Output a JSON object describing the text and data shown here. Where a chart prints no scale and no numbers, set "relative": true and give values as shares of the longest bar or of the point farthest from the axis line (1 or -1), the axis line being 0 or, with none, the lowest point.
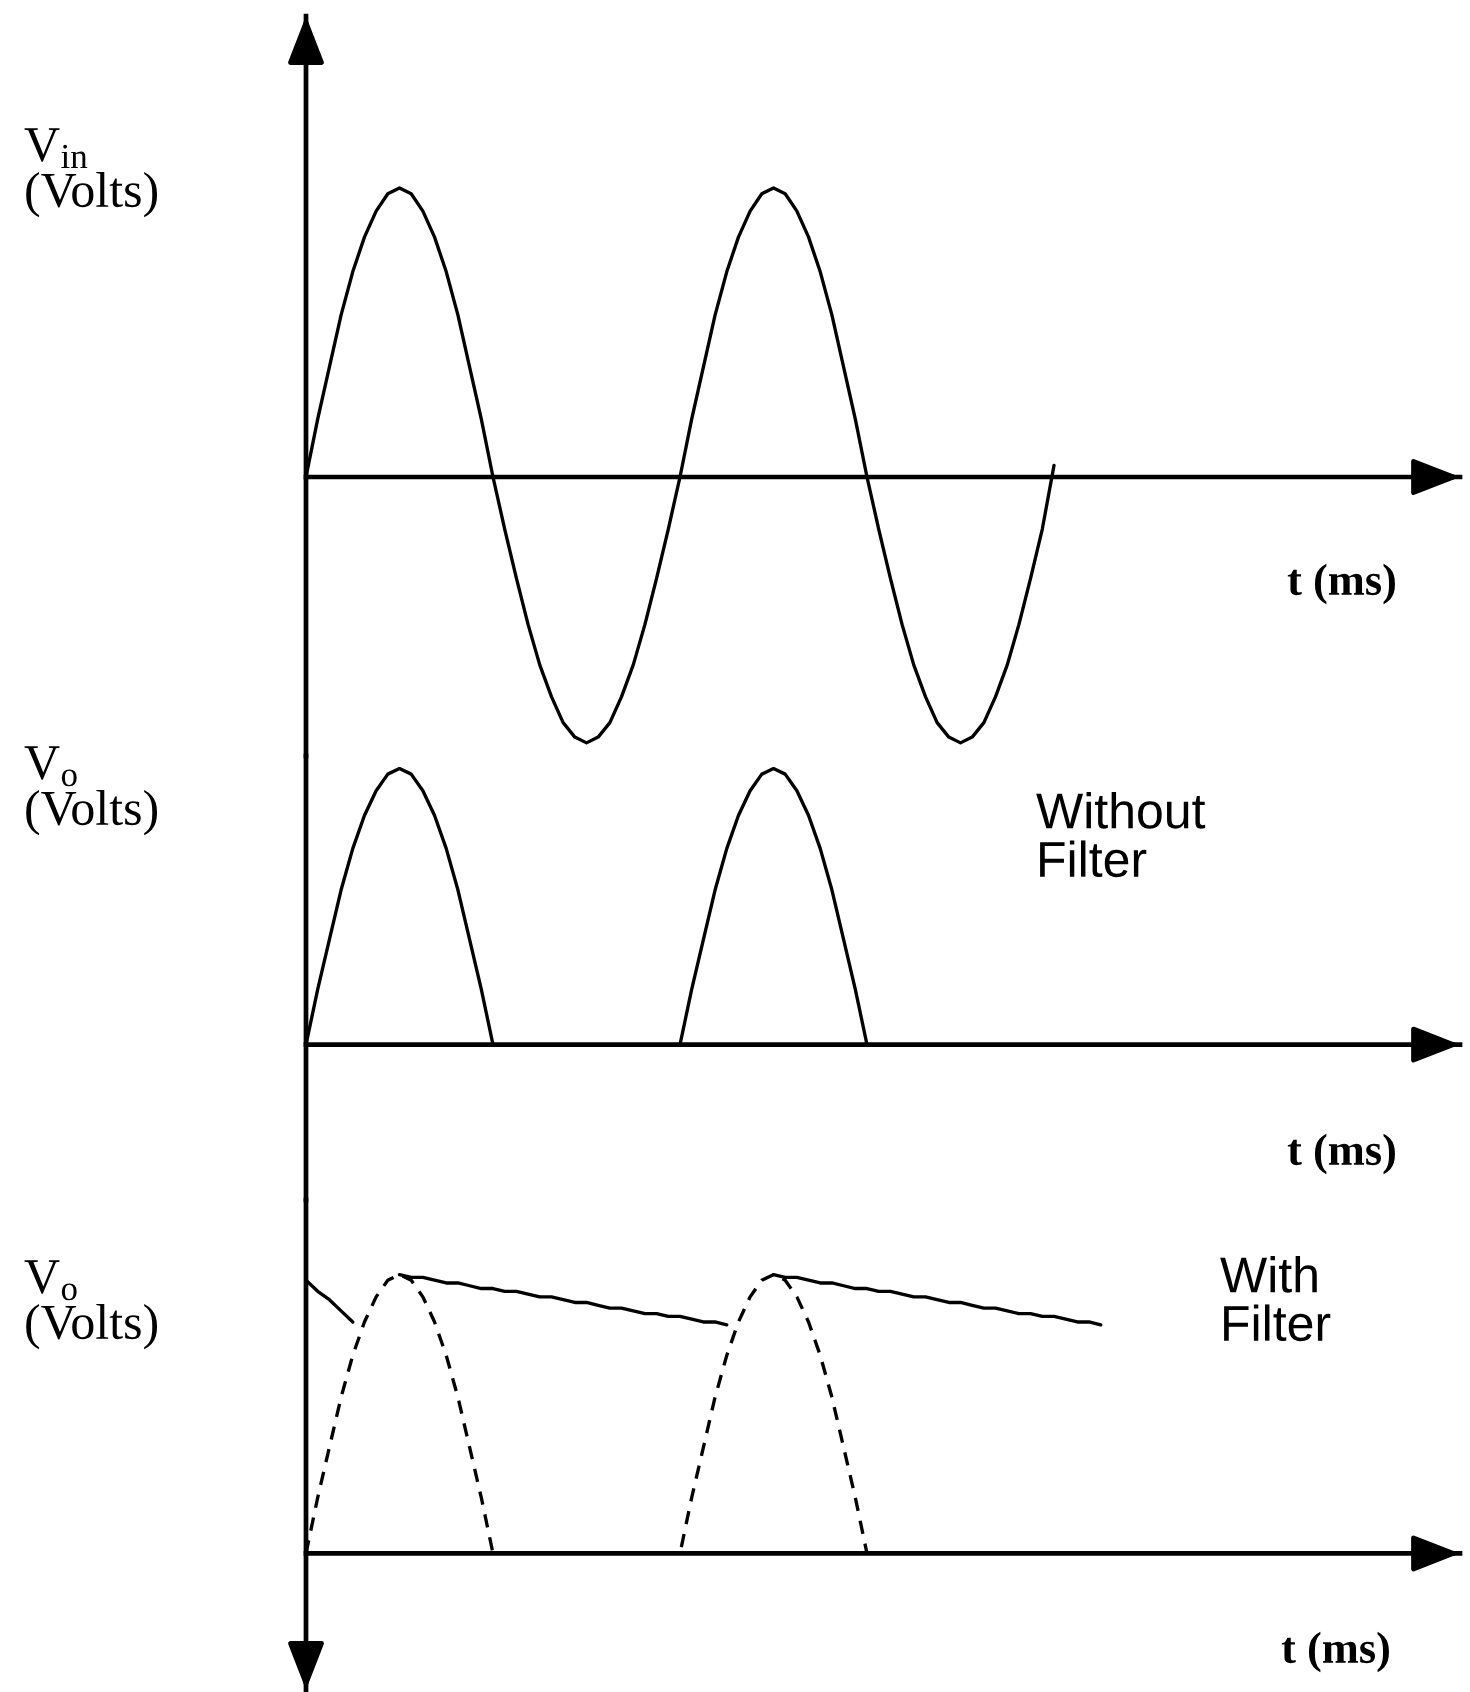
{
  "chart_data": [
    {
      "type": "line",
      "relative": true,
      "ylabel": "V$_{in}$\n(Volts)",
      "xlabel": "t (ms)",
      "categories": [
        null,
        null,
        null,
        null,
        null,
        null,
        null,
        null,
        null,
        null,
        null,
        null,
        null,
        null,
        null,
        null,
        null,
        null,
        null,
        null,
        null,
        null,
        null,
        null,
        null,
        null,
        null,
        null,
        null,
        null,
        null,
        null,
        null,
        null,
        null,
        null,
        null,
        null,
        null,
        null,
        null,
        null,
        null,
        null,
        null,
        null,
        null,
        null,
        null,
        null,
        null,
        null,
        null,
        null,
        null,
        null,
        null,
        null,
        null,
        null,
        null,
        null,
        null,
        null,
        null,
        null,
        null,
        null,
        null,
        null,
        null,
        null,
        null,
        null,
        null,
        null,
        null,
        null,
        null,
        null,
        null,
        null,
        null,
        null,
        null,
        null,
        null,
        null,
        null,
        null,
        null,
        null,
        null,
        null,
        null,
        null,
        null,
        null,
        null
      ],
      "series": [
        {
          "color": "#000000",
          "values": [
            0,
            0.2,
            0.38,
            0.56,
            0.71,
            0.83,
            0.92,
            0.98,
            1,
            0.98,
            0.92,
            0.83,
            0.71,
            0.56,
            0.38,
            0.2,
            0,
            -0.18,
            -0.35,
            -0.51,
            -0.65,
            -0.76,
            -0.85,
            -0.9,
            -0.92,
            -0.9,
            -0.85,
            -0.76,
            -0.65,
            -0.51,
            -0.35,
            -0.18,
            0,
            0.2,
            0.38,
            0.56,
            0.71,
            0.83,
            0.92,
            0.98,
            1,
            0.98,
            0.92,
            0.83,
            0.71,
            0.56,
            0.38,
            0.2,
            0,
            -0.18,
            -0.35,
            -0.51,
            -0.65,
            -0.76,
            -0.85,
            -0.9,
            -0.92,
            -0.9,
            -0.85,
            -0.76,
            -0.65,
            -0.51,
            -0.35,
            -0.18,
            0.04,
            null,
            null,
            null,
            null,
            null,
            null,
            null,
            null,
            null,
            null,
            null,
            null,
            null,
            null,
            null,
            null,
            null,
            null,
            null,
            null,
            null,
            null,
            null,
            null,
            null,
            null,
            null,
            null,
            null,
            null,
            null,
            null,
            null,
            null
          ]
        }
      ]
    },
    {
      "type": "line",
      "relative": true,
      "ylabel": "V$_{o}$\n(Volts)",
      "xlabel": "t (ms)",
      "annotations": [
        "Without\nFilter"
      ],
      "categories": [
        null,
        null,
        null,
        null,
        null,
        null,
        null,
        null,
        null,
        null,
        null,
        null,
        null,
        null,
        null,
        null,
        null,
        null,
        null,
        null,
        null,
        null,
        null,
        null,
        null,
        null,
        null,
        null,
        null,
        null,
        null,
        null,
        null,
        null,
        null,
        null,
        null,
        null,
        null,
        null,
        null,
        null,
        null,
        null,
        null,
        null,
        null,
        null,
        null,
        null,
        null,
        null,
        null,
        null,
        null,
        null,
        null,
        null,
        null,
        null,
        null,
        null,
        null,
        null,
        null,
        null,
        null,
        null,
        null,
        null,
        null,
        null,
        null,
        null,
        null,
        null,
        null,
        null,
        null,
        null,
        null,
        null,
        null,
        null,
        null,
        null,
        null,
        null,
        null,
        null,
        null,
        null,
        null,
        null,
        null,
        null,
        null,
        null,
        null
      ],
      "series": [
        {
          "color": "#000000",
          "values": [
            0,
            0.2,
            0.38,
            0.56,
            0.71,
            0.83,
            0.92,
            0.98,
            1,
            0.98,
            0.92,
            0.83,
            0.71,
            0.56,
            0.38,
            0.2,
            0,
            0,
            0,
            0,
            0,
            0,
            0,
            0,
            0,
            0,
            0,
            0,
            0,
            0,
            0,
            0,
            0,
            0.2,
            0.38,
            0.56,
            0.71,
            0.83,
            0.92,
            0.98,
            1,
            0.98,
            0.92,
            0.83,
            0.71,
            0.56,
            0.38,
            0.2,
            0,
            null,
            null,
            null,
            null,
            null,
            null,
            null,
            null,
            null,
            null,
            null,
            null,
            null,
            null,
            null,
            null,
            null,
            null,
            null,
            null,
            null,
            null,
            null,
            null,
            null,
            null,
            null,
            null,
            null,
            null,
            null,
            null,
            null,
            null,
            null,
            null,
            null,
            null,
            null,
            null,
            null,
            null,
            null,
            null,
            null,
            null,
            null,
            null,
            null,
            null
          ]
        }
      ]
    },
    {
      "type": "line",
      "relative": true,
      "ylabel": "V$_{o}$\n(Volts)",
      "xlabel": "t (ms)",
      "annotations": [
        "With\nFilter"
      ],
      "categories": [
        null,
        null,
        null,
        null,
        null,
        null,
        null,
        null,
        null,
        null,
        null,
        null,
        null,
        null,
        null,
        null,
        null,
        null,
        null,
        null,
        null,
        null,
        null,
        null,
        null,
        null,
        null,
        null,
        null,
        null,
        null,
        null,
        null,
        null,
        null,
        null,
        null,
        null,
        null,
        null,
        null,
        null,
        null,
        null,
        null,
        null,
        null,
        null,
        null,
        null,
        null,
        null,
        null,
        null,
        null,
        null,
        null,
        null,
        null,
        null,
        null,
        null,
        null,
        null,
        null,
        null,
        null,
        null,
        null,
        null,
        null,
        null,
        null,
        null,
        null,
        null,
        null,
        null,
        null,
        null,
        null,
        null,
        null,
        null,
        null,
        null,
        null,
        null,
        null,
        null,
        null,
        null,
        null,
        null,
        null,
        null,
        null,
        null,
        null
      ],
      "series": [
        {
          "color": "#000000",
          "line_style": "dashed",
          "values": [
            0,
            0.2,
            0.38,
            0.56,
            0.71,
            0.83,
            0.92,
            0.98,
            1,
            0.98,
            0.92,
            0.83,
            0.71,
            0.56,
            0.38,
            0.2,
            0,
            0,
            0,
            0,
            0,
            0,
            0,
            0,
            0,
            0,
            0,
            0,
            0,
            0,
            0,
            0,
            0,
            0.2,
            0.38,
            0.56,
            0.71,
            0.83,
            0.92,
            0.98,
            1,
            0.98,
            0.92,
            0.83,
            0.71,
            0.56,
            0.38,
            0.2,
            0,
            null,
            null,
            null,
            null,
            null,
            null,
            null,
            null,
            null,
            null,
            null,
            null,
            null,
            null,
            null,
            null,
            null,
            null,
            null,
            null,
            null,
            null,
            null,
            null,
            null,
            null,
            null,
            null,
            null,
            null,
            null,
            null,
            null,
            null,
            null,
            null,
            null,
            null,
            null,
            null,
            null,
            null,
            null,
            null,
            null,
            null,
            null,
            null,
            null,
            null
          ]
        },
        {
          "color": "#000000",
          "line_style": "solid",
          "values": [
            0.98,
            0.94,
            0.91,
            0.87,
            0.83,
            null,
            null,
            null,
            1,
            0.99,
            0.99,
            0.98,
            0.97,
            0.97,
            0.96,
            0.95,
            0.95,
            0.94,
            0.94,
            0.93,
            0.92,
            0.92,
            0.91,
            0.9,
            0.9,
            0.89,
            0.88,
            0.88,
            0.87,
            0.86,
            0.86,
            0.85,
            0.85,
            0.84,
            0.83,
            0.83,
            0.82,
            null,
            null,
            null,
            1,
            0.99,
            0.99,
            0.98,
            0.97,
            0.97,
            0.96,
            0.95,
            0.95,
            0.94,
            0.94,
            0.93,
            0.92,
            0.92,
            0.91,
            0.9,
            0.9,
            0.89,
            0.88,
            0.88,
            0.87,
            0.86,
            0.86,
            0.85,
            0.85,
            0.84,
            0.83,
            0.83,
            0.82,
            null,
            null,
            null,
            null,
            null,
            null,
            null,
            null,
            null,
            null,
            null,
            null,
            null,
            null,
            null,
            null,
            null,
            null,
            null,
            null,
            null,
            null,
            null,
            null,
            null,
            null,
            null,
            null,
            null,
            null
          ]
        }
      ]
    }
  ]
}
